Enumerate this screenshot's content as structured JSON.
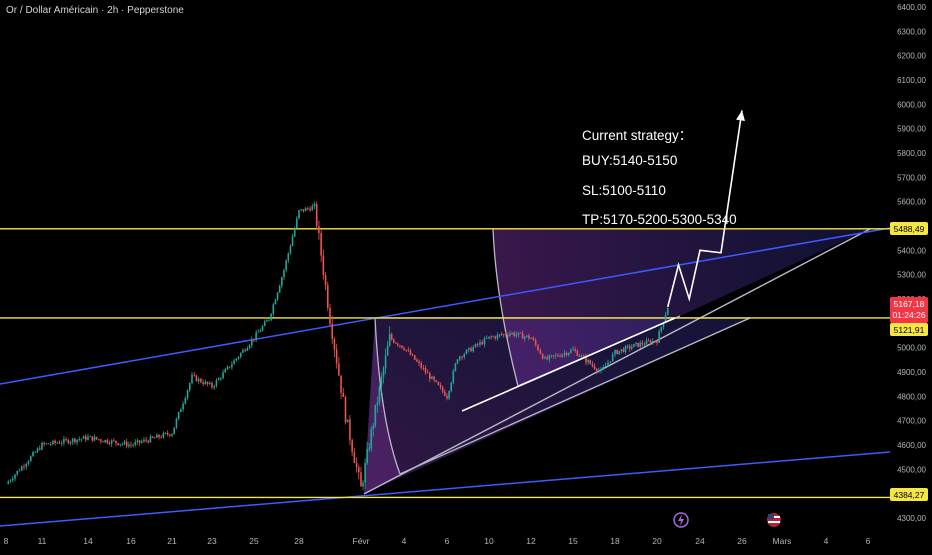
{
  "header": {
    "symbol_title": "Or / Dollar Américain · 2h · Pepperstone"
  },
  "strategy": {
    "heading": "Current strategy：",
    "buy": "BUY:5140-5150",
    "sl": "SL:5100-5110",
    "tp": "TP:5170-5200-5300-5340"
  },
  "price_badges": {
    "current_price": "5167,18",
    "countdown": "01:24:26",
    "level_5488": "5488,49",
    "level_5121": "5121,91",
    "level_4384": "4384,27"
  },
  "colors": {
    "background": "#000000",
    "candle_up": "#26a69a",
    "candle_down": "#ef5350",
    "horizontal_level": "#f5e642",
    "trend_line": "#3d5afe",
    "channel_line": "#b8b8c8",
    "projection": "#ffffff",
    "current_price_badge": "#f23645",
    "level_badge": "#f5e642"
  },
  "icons": [
    "lightning-event-icon",
    "us-flag-event-icon"
  ],
  "chart_data": {
    "type": "candlestick",
    "title": "",
    "ylim": [
      4290,
      6420
    ],
    "y_ticks": [
      "6400,00",
      "6300,00",
      "6200,00",
      "6100,00",
      "6000,00",
      "5900,00",
      "5800,00",
      "5700,00",
      "5600,00",
      "5500,00",
      "5400,00",
      "5300,00",
      "5200,00",
      "5100,00",
      "5000,00",
      "4900,00",
      "4800,00",
      "4700,00",
      "4600,00",
      "4500,00",
      "4400,00",
      "4300,00"
    ],
    "x_ticks": [
      "8",
      "11",
      "14",
      "16",
      "21",
      "23",
      "25",
      "28",
      "Févr",
      "4",
      "6",
      "10",
      "12",
      "15",
      "18",
      "20",
      "24",
      "26",
      "Mars",
      "4",
      "6"
    ],
    "price_path": [
      {
        "date": "Jan 8",
        "price": 4440
      },
      {
        "date": "Jan 11",
        "price": 4600
      },
      {
        "date": "Jan 14",
        "price": 4630
      },
      {
        "date": "Jan 16",
        "price": 4600
      },
      {
        "date": "Jan 21",
        "price": 4650
      },
      {
        "date": "Jan 22",
        "price": 4880
      },
      {
        "date": "Jan 23",
        "price": 4840
      },
      {
        "date": "Jan 25",
        "price": 5040
      },
      {
        "date": "Jan 26",
        "price": 5120
      },
      {
        "date": "Jan 27",
        "price": 5320
      },
      {
        "date": "Jan 28",
        "price": 5560
      },
      {
        "date": "Jan 29",
        "price": 5580
      },
      {
        "date": "Jan 30",
        "price": 5120
      },
      {
        "date": "Jan 31",
        "price": 4720
      },
      {
        "date": "Févr 1",
        "price": 4420
      },
      {
        "date": "Févr 2",
        "price": 4740
      },
      {
        "date": "Févr 3",
        "price": 5040
      },
      {
        "date": "Févr 4",
        "price": 5000
      },
      {
        "date": "Févr 5",
        "price": 4900
      },
      {
        "date": "Févr 6",
        "price": 4800
      },
      {
        "date": "Févr 7",
        "price": 4960
      },
      {
        "date": "Févr 10",
        "price": 5040
      },
      {
        "date": "Févr 11",
        "price": 5060
      },
      {
        "date": "Févr 12",
        "price": 5040
      },
      {
        "date": "Févr 13",
        "price": 4950
      },
      {
        "date": "Févr 15",
        "price": 4990
      },
      {
        "date": "Févr 17",
        "price": 4900
      },
      {
        "date": "Févr 18",
        "price": 4980
      },
      {
        "date": "Févr 19",
        "price": 5010
      },
      {
        "date": "Févr 20",
        "price": 5030
      },
      {
        "date": "Févr 21",
        "price": 5167
      }
    ],
    "last_price": 5167.18,
    "horizontal_levels": [
      5488.49,
      5121.91,
      4384.27
    ],
    "projection_path": [
      {
        "date": "Févr 21",
        "price": 5167
      },
      {
        "date": "Févr 22",
        "price": 5340
      },
      {
        "date": "Févr 23",
        "price": 5200
      },
      {
        "date": "Févr 24",
        "price": 5400
      },
      {
        "date": "Févr 25",
        "price": 5390
      },
      {
        "date": "Févr 26",
        "price": 5975
      }
    ],
    "grid": false
  }
}
